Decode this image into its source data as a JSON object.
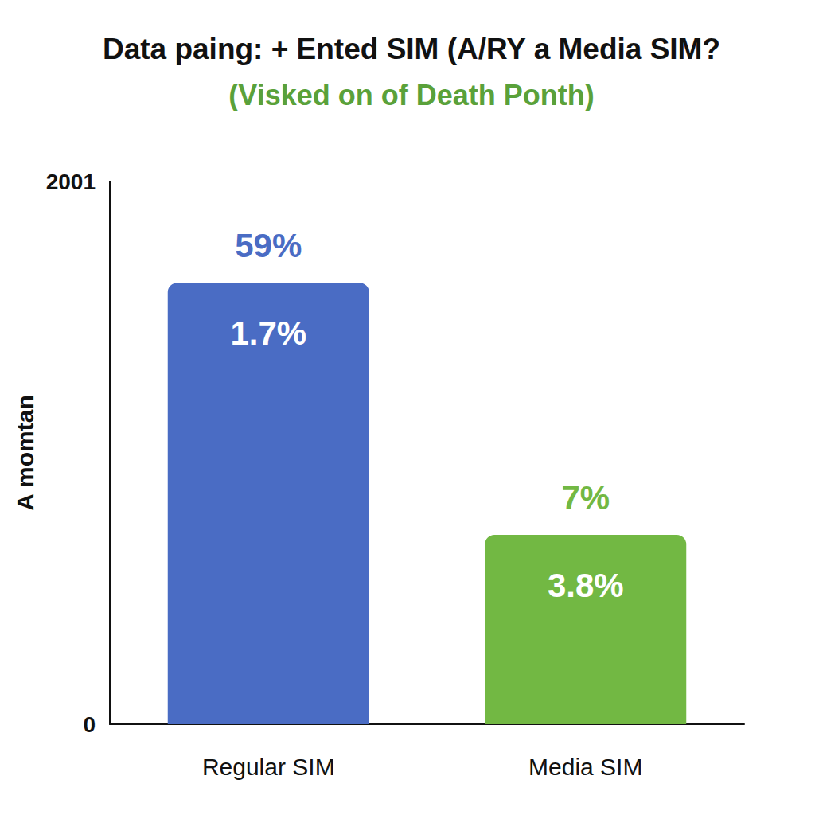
{
  "chart_data": {
    "type": "bar",
    "title": "Data paing: + Ented SIM (A/RY a Media SIM?",
    "subtitle": "(Visked on of Death Ponth)",
    "y_label": "A momtan",
    "categories": [
      "Regular SIM",
      "Media SIM"
    ],
    "values": [
      1628,
      698
    ],
    "colors": [
      "#4a6cc4",
      "#72b843"
    ],
    "ylim": [
      0,
      2001
    ],
    "yticks": [
      0,
      2001
    ],
    "grid": false,
    "annotations": [
      {
        "category": "Regular SIM",
        "text": "59%",
        "position": "above"
      },
      {
        "category": "Regular SIM",
        "text": "1.7%",
        "position": "inside"
      },
      {
        "category": "Media SIM",
        "text": "7%",
        "position": "above"
      },
      {
        "category": "Media SIM",
        "text": "3.8%",
        "position": "inside"
      }
    ]
  }
}
